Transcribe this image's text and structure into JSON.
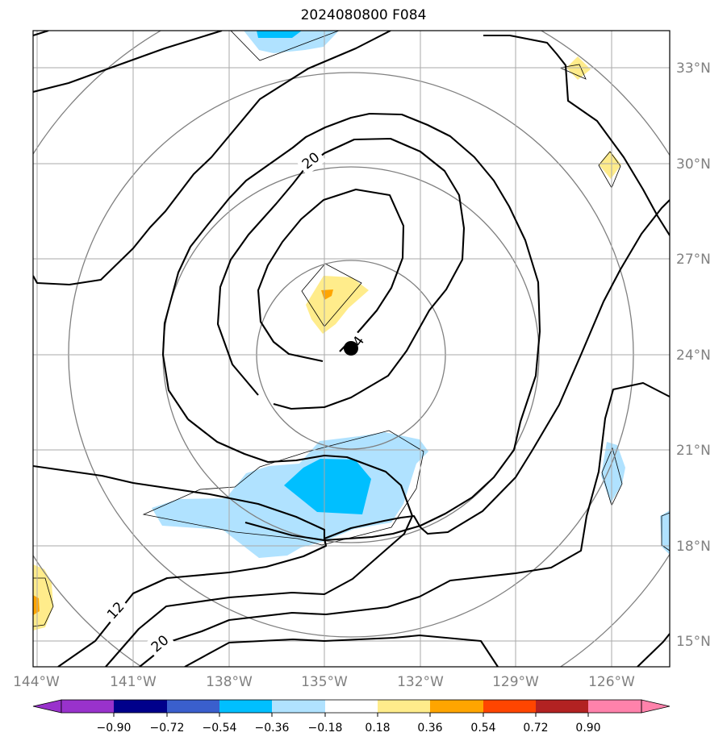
{
  "title": "2024080800 F084",
  "map": {
    "lon_labels": [
      "144°W",
      "141°W",
      "138°W",
      "135°W",
      "132°W",
      "129°W",
      "126°W"
    ],
    "lat_labels": [
      "33°N",
      "30°N",
      "27°N",
      "24°N",
      "21°N",
      "18°N",
      "15°N"
    ],
    "contour_labels": [
      "20",
      "4",
      "12",
      "20"
    ],
    "center_marker": "storm-center"
  },
  "colorbar": {
    "ticks": [
      "−0.90",
      "−0.72",
      "−0.54",
      "−0.36",
      "−0.18",
      "0.18",
      "0.36",
      "0.54",
      "0.72",
      "0.90"
    ],
    "colors": [
      "#9932cc",
      "#00008b",
      "#3a5fcd",
      "#00bfff",
      "#b0e2ff",
      "#ffffff",
      "#ffec8b",
      "#ffa500",
      "#ff4500",
      "#b22222",
      "#ff82ab"
    ]
  }
}
